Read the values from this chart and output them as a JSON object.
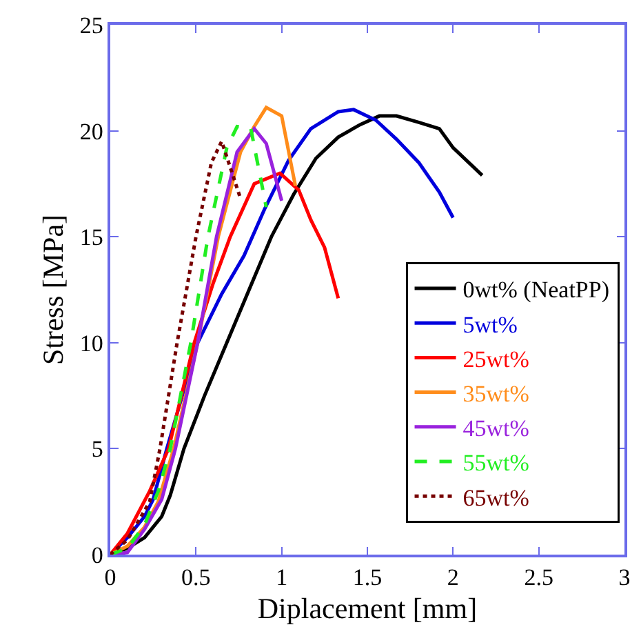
{
  "chart_data": {
    "type": "line",
    "xlabel": "Diplacement [mm]",
    "ylabel": "Stress [MPa]",
    "xlim": [
      0,
      3
    ],
    "xticks": [
      0,
      0.5,
      1,
      1.5,
      2,
      2.5,
      3
    ],
    "ylim": [
      0,
      25
    ],
    "yticks": [
      0,
      5,
      10,
      15,
      20,
      25
    ],
    "grid": false,
    "legend": "bottom right",
    "marker": "none",
    "series": [
      {
        "name": "0wt% (NeatPP)",
        "color": "#000000",
        "line_style": "solid",
        "x": [
          0,
          0.1,
          0.2,
          0.3,
          0.35,
          0.43,
          0.55,
          0.68,
          0.81,
          0.94,
          1.07,
          1.2,
          1.33,
          1.46,
          1.57,
          1.67,
          1.8,
          1.92,
          2.0,
          2.17
        ],
        "values": [
          0,
          0.3,
          0.8,
          1.8,
          2.8,
          5,
          7.5,
          10,
          12.5,
          15,
          17,
          18.7,
          19.7,
          20.3,
          20.7,
          20.7,
          20.4,
          20.1,
          19.2,
          17.9
        ]
      },
      {
        "name": "5wt%",
        "color": "#0000dd",
        "line_style": "solid",
        "x": [
          0,
          0.1,
          0.2,
          0.25,
          0.33,
          0.51,
          0.65,
          0.78,
          0.9,
          1.04,
          1.17,
          1.33,
          1.42,
          1.55,
          1.67,
          1.8,
          1.92,
          2.0
        ],
        "values": [
          0,
          0.8,
          1.8,
          2.6,
          5,
          10,
          12.3,
          14.1,
          16.3,
          18.6,
          20.1,
          20.9,
          21.0,
          20.5,
          19.6,
          18.5,
          17.1,
          15.9
        ]
      },
      {
        "name": "25wt%",
        "color": "#ff0000",
        "line_style": "solid",
        "x": [
          0,
          0.1,
          0.23,
          0.34,
          0.49,
          0.6,
          0.7,
          0.84,
          0.99,
          1.1,
          1.17,
          1.25,
          1.33
        ],
        "values": [
          0,
          1.0,
          3.0,
          5,
          10,
          12.8,
          15,
          17.5,
          18.0,
          17.2,
          15.8,
          14.5,
          12.1
        ]
      },
      {
        "name": "35wt%",
        "color": "#ff8c1a",
        "line_style": "solid",
        "x": [
          0,
          0.1,
          0.2,
          0.28,
          0.37,
          0.51,
          0.63,
          0.76,
          0.84,
          0.91,
          1.0,
          1.08
        ],
        "values": [
          0,
          0.4,
          1.3,
          2.5,
          5,
          10,
          15,
          19.0,
          20.2,
          21.1,
          20.7,
          17.4
        ]
      },
      {
        "name": "45wt%",
        "color": "#9922dd",
        "line_style": "solid",
        "x": [
          0,
          0.1,
          0.2,
          0.3,
          0.38,
          0.51,
          0.62,
          0.74,
          0.84,
          0.91,
          1.0
        ],
        "values": [
          0,
          0.1,
          1.2,
          2.6,
          5,
          10,
          15,
          19.0,
          20.1,
          19.4,
          16.7
        ]
      },
      {
        "name": "55wt%",
        "color": "#22ee22",
        "line_style": "dashed",
        "x": [
          0,
          0.1,
          0.2,
          0.28,
          0.35,
          0.47,
          0.57,
          0.68,
          0.74,
          0.82,
          0.91
        ],
        "values": [
          0,
          0.3,
          1.4,
          3.0,
          5,
          10,
          15,
          19.2,
          20.2,
          20.1,
          16.4
        ]
      },
      {
        "name": "65wt%",
        "color": "#770000",
        "line_style": "dotted",
        "x": [
          0,
          0.1,
          0.18,
          0.23,
          0.29,
          0.39,
          0.5,
          0.59,
          0.65,
          0.76
        ],
        "values": [
          0,
          0.7,
          1.8,
          2.5,
          5,
          10,
          15,
          18.5,
          19.5,
          16.8
        ]
      }
    ]
  }
}
